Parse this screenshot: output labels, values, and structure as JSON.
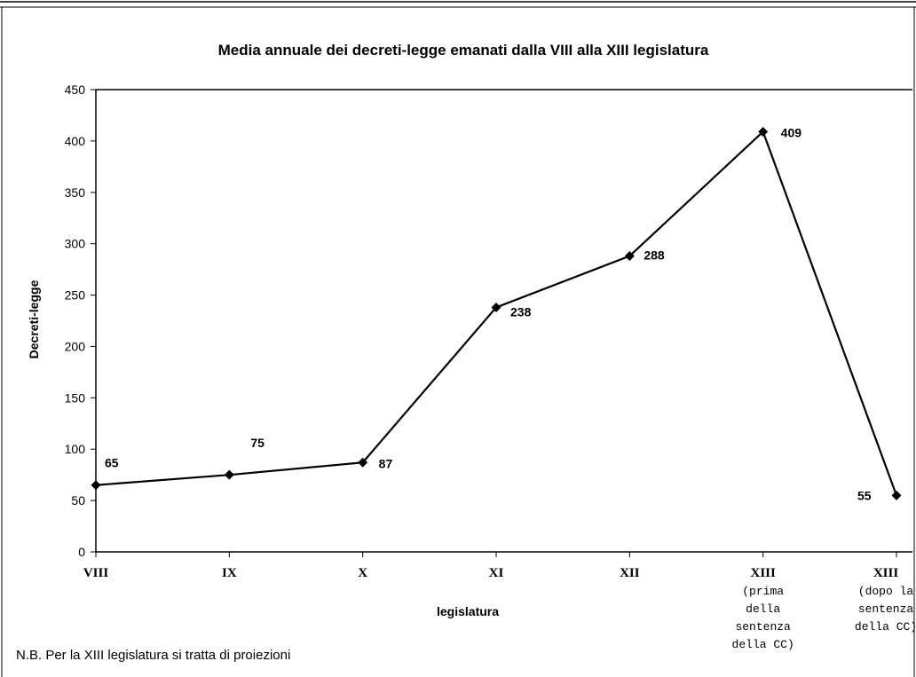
{
  "chart_data": {
    "type": "line",
    "title": "Media annuale dei decreti-legge emanati dalla VIII alla XIII legislatura",
    "xlabel": "legislatura",
    "ylabel": "Decreti-legge",
    "ylim": [
      0,
      450
    ],
    "yticks": [
      0,
      50,
      100,
      150,
      200,
      250,
      300,
      350,
      400,
      450
    ],
    "categories": [
      [
        "VIII"
      ],
      [
        "IX"
      ],
      [
        "X"
      ],
      [
        "XI"
      ],
      [
        "XII"
      ],
      [
        "XIII",
        "(prima",
        "della",
        "sentenza",
        "della CC)"
      ],
      [
        "XIII",
        "(dopo la",
        "sentenza",
        "della CC)"
      ]
    ],
    "values": [
      65,
      75,
      87,
      238,
      288,
      409,
      55
    ],
    "data_labels": [
      "65",
      "75",
      "87",
      "238",
      "288",
      "409",
      "55"
    ],
    "grid": false,
    "line_color": "#000000",
    "marker": "diamond"
  },
  "footnote": "N.B. Per la XIII legislatura si tratta di proiezioni"
}
